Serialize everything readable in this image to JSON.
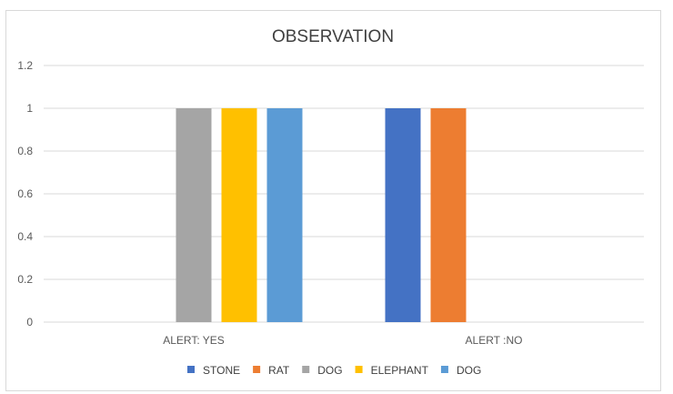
{
  "chart_data": {
    "type": "bar",
    "title": "OBSERVATION",
    "categories": [
      "ALERT: YES",
      "ALERT :NO"
    ],
    "series": [
      {
        "name": "STONE",
        "color": "#4472c4",
        "values": [
          0,
          1
        ]
      },
      {
        "name": "RAT",
        "color": "#ed7d31",
        "values": [
          0,
          1
        ]
      },
      {
        "name": "DOG",
        "color": "#a5a5a5",
        "values": [
          1,
          0
        ]
      },
      {
        "name": "ELEPHANT",
        "color": "#ffc000",
        "values": [
          1,
          0
        ]
      },
      {
        "name": "DOG",
        "color": "#5b9bd5",
        "values": [
          1,
          0
        ]
      }
    ],
    "yticks": [
      "0",
      "0.2",
      "0.4",
      "0.6",
      "0.8",
      "1",
      "1.2"
    ],
    "ylim": [
      0,
      1.2
    ],
    "grid": true,
    "legend_position": "bottom",
    "gridline_color": "#d9d9d9"
  }
}
